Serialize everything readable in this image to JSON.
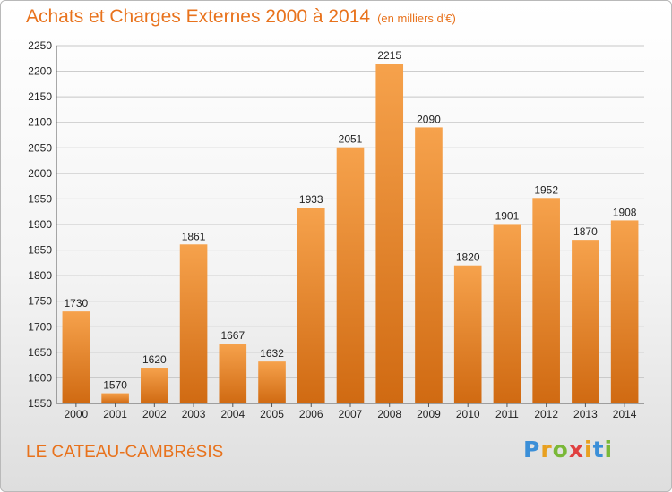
{
  "header": {
    "title": "Achats et Charges Externes 2000 à 2014",
    "unit": "(en milliers d'€)"
  },
  "footer": {
    "town": "LE CATEAU-CAMBRéSIS",
    "logo_letters": [
      "P",
      "r",
      "o",
      "x",
      "i",
      "t",
      "i"
    ],
    "logo_colors": [
      "#3b8fd8",
      "#e8a020",
      "#7ab838",
      "#e04040",
      "#e8a020",
      "#3b8fd8",
      "#7ab838"
    ]
  },
  "colors": {
    "bar_light": "#f6a24c",
    "bar_dark": "#d06a12",
    "title": "#e8721c",
    "grid": "#c6c6c6"
  },
  "chart_data": {
    "type": "bar",
    "title": "Achats et Charges Externes 2000 à 2014",
    "subtitle": "(en milliers d'€)",
    "xlabel": "",
    "ylabel": "",
    "categories": [
      "2000",
      "2001",
      "2002",
      "2003",
      "2004",
      "2005",
      "2006",
      "2007",
      "2008",
      "2009",
      "2010",
      "2011",
      "2012",
      "2013",
      "2014"
    ],
    "values": [
      1730,
      1570,
      1620,
      1861,
      1667,
      1632,
      1933,
      2051,
      2215,
      2090,
      1820,
      1901,
      1952,
      1870,
      1908
    ],
    "ylim": [
      1550,
      2250
    ],
    "yticks": [
      1550,
      1600,
      1650,
      1700,
      1750,
      1800,
      1850,
      1900,
      1950,
      2000,
      2050,
      2100,
      2150,
      2200,
      2250
    ],
    "grid": true,
    "legend": "none"
  }
}
